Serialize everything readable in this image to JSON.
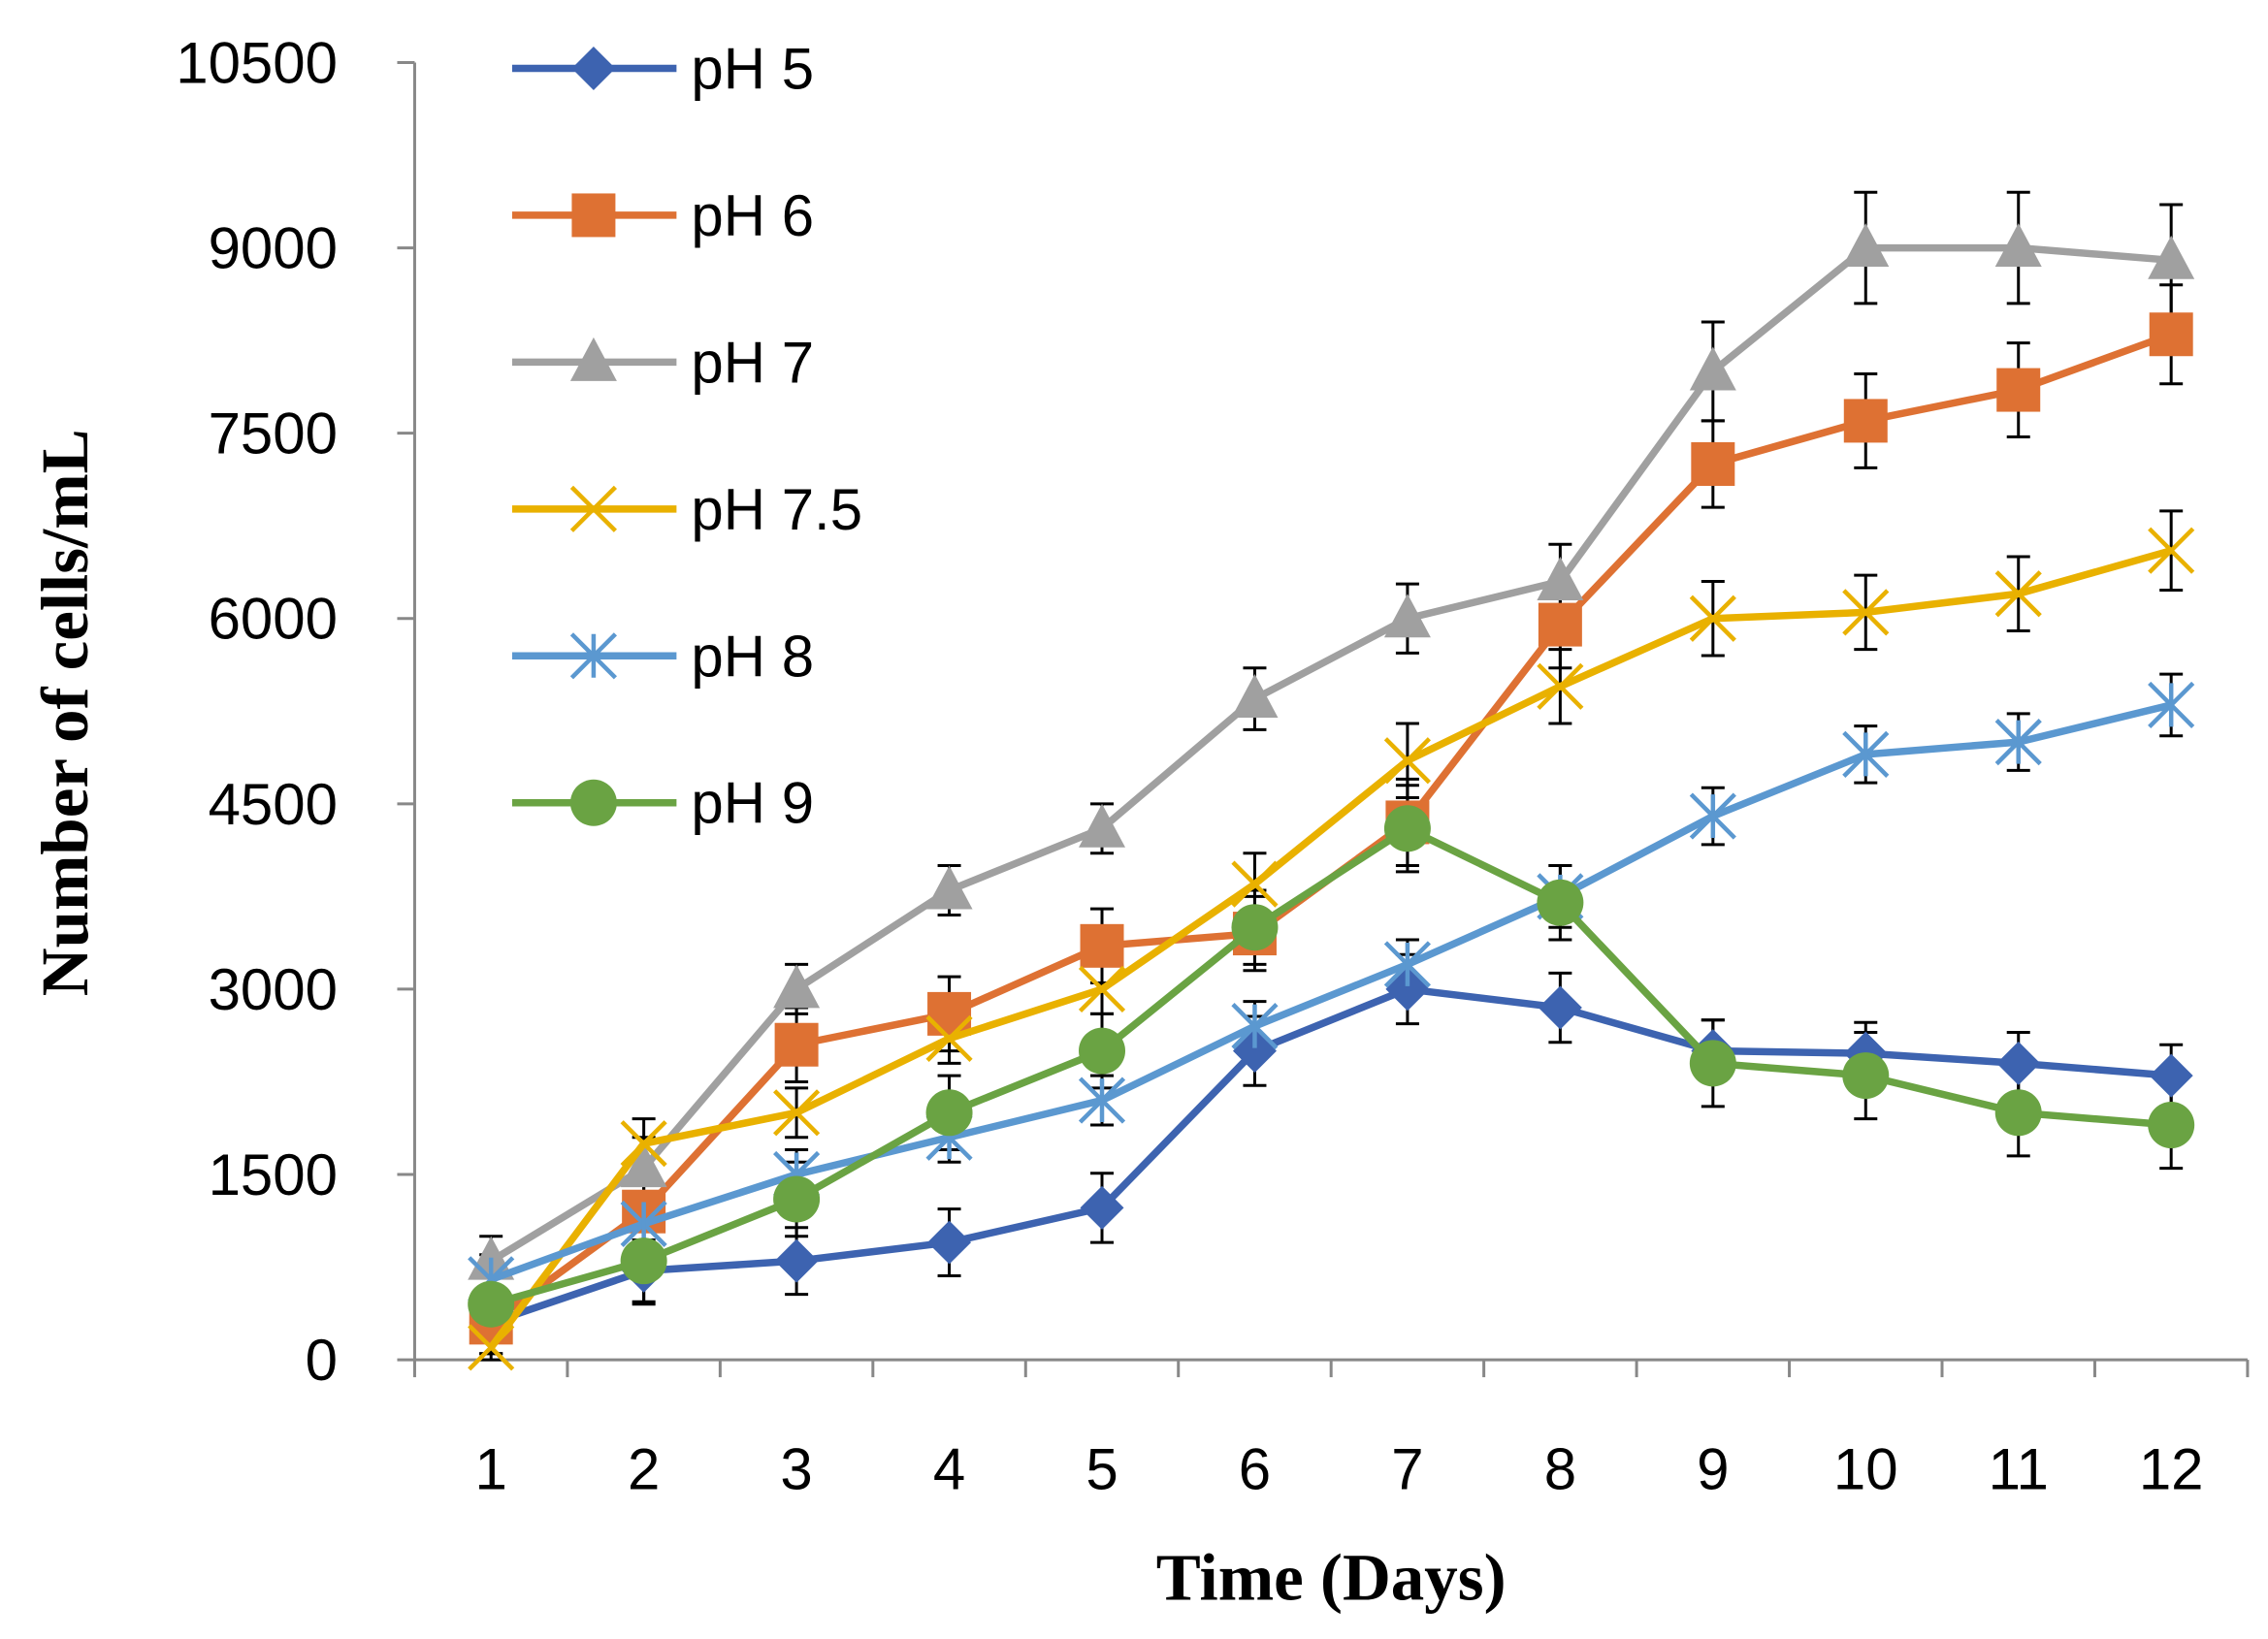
{
  "chart_data": {
    "type": "line",
    "title": "",
    "xlabel": "Time (Days)",
    "ylabel": "Number of cells/mL",
    "x": [
      1,
      2,
      3,
      4,
      5,
      6,
      7,
      8,
      9,
      10,
      11,
      12
    ],
    "ylim": [
      0,
      10500
    ],
    "yticks": [
      0,
      1500,
      3000,
      4500,
      6000,
      7500,
      9000,
      10500
    ],
    "grid": false,
    "legend_placement": "top-left",
    "series": [
      {
        "name": "pH 5",
        "color": "#3d63b0",
        "marker": "diamond",
        "values": [
          300,
          720,
          800,
          950,
          1230,
          2500,
          3000,
          2850,
          2500,
          2480,
          2400,
          2300
        ],
        "errors": [
          250,
          250,
          270,
          270,
          280,
          280,
          280,
          280,
          250,
          250,
          250,
          250
        ]
      },
      {
        "name": "pH 6",
        "color": "#de7133",
        "marker": "square",
        "values": [
          300,
          1200,
          2550,
          2800,
          3350,
          3450,
          4350,
          5950,
          7250,
          7600,
          7850,
          8300
        ],
        "errors": [
          250,
          300,
          300,
          300,
          300,
          300,
          350,
          350,
          350,
          380,
          380,
          400
        ]
      },
      {
        "name": "pH 7",
        "color": "#a0a0a0",
        "marker": "triangle",
        "values": [
          800,
          1550,
          3000,
          3800,
          4300,
          5350,
          6000,
          6300,
          8000,
          9000,
          9000,
          8900
        ],
        "errors": [
          200,
          250,
          200,
          200,
          200,
          250,
          280,
          300,
          400,
          450,
          450,
          450
        ]
      },
      {
        "name": "pH 7.5",
        "color": "#e9b100",
        "marker": "x",
        "values": [
          100,
          1750,
          2000,
          2600,
          3000,
          3850,
          4850,
          5450,
          6000,
          6050,
          6200,
          6550
        ],
        "errors": [
          200,
          200,
          200,
          200,
          200,
          250,
          300,
          300,
          300,
          300,
          300,
          320
        ]
      },
      {
        "name": "pH 8",
        "color": "#5b98d0",
        "marker": "asterisk",
        "values": [
          650,
          1100,
          1500,
          1800,
          2100,
          2700,
          3200,
          3750,
          4400,
          4900,
          5000,
          5300
        ],
        "errors": [
          200,
          200,
          200,
          200,
          200,
          200,
          200,
          250,
          230,
          230,
          230,
          250
        ]
      },
      {
        "name": "pH 9",
        "color": "#6aa343",
        "marker": "circle",
        "values": [
          450,
          800,
          1300,
          2000,
          2500,
          3500,
          4300,
          3700,
          2400,
          2300,
          2000,
          1900
        ],
        "errors": [
          300,
          350,
          300,
          300,
          300,
          300,
          350,
          300,
          350,
          350,
          350,
          350
        ]
      }
    ]
  }
}
